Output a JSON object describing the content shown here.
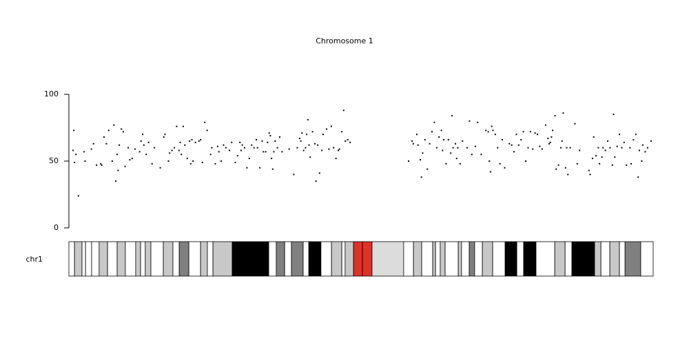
{
  "chart_data": {
    "type": "scatter",
    "title": "Chromosome 1",
    "xlim": [
      0,
      249.4
    ],
    "ylim": [
      0,
      100
    ],
    "yticks": [
      0,
      50,
      100
    ],
    "color": "#000000",
    "x": [
      1.8,
      2.1,
      2.4,
      3,
      4.1,
      6.5,
      6.9,
      9.6,
      10.5,
      11.8,
      13.6,
      14,
      15,
      16,
      17,
      18.5,
      19.2,
      20,
      20.6,
      21,
      21.5,
      22.4,
      23.2,
      24,
      25.3,
      26,
      27,
      28.2,
      30.2,
      30.8,
      31.5,
      32,
      33,
      34,
      35.5,
      36.5,
      39,
      40.5,
      41,
      42.5,
      43,
      44,
      45,
      46,
      47,
      47.5,
      48,
      48.8,
      49.5,
      50.5,
      51.5,
      52,
      52.5,
      53,
      54,
      55.5,
      56.2,
      57,
      58,
      59,
      60.5,
      61,
      62.5,
      63.5,
      64,
      65,
      66,
      67,
      68.5,
      69.5,
      71,
      72,
      73,
      73.5,
      74,
      75,
      76,
      77,
      78,
      79,
      80,
      80.5,
      81.5,
      82.5,
      83,
      84,
      84.8,
      85.5,
      86,
      86.5,
      87,
      87.5,
      88,
      89,
      90,
      91,
      94,
      96,
      97.5,
      98.5,
      99,
      99.5,
      100.2,
      101,
      101.5,
      102,
      102.5,
      103,
      104,
      105,
      105.5,
      106.2,
      107,
      108,
      108.5,
      110,
      111,
      112,
      113,
      114,
      115,
      115.5,
      116.5,
      117.3,
      118,
      119,
      120,
      145,
      146.5,
      147,
      148.5,
      149,
      150,
      150.5,
      151,
      152,
      153,
      154,
      155,
      156,
      157,
      158,
      159,
      159.5,
      160,
      161,
      162,
      163,
      163.5,
      164,
      165,
      165.5,
      166,
      167,
      168,
      170,
      171,
      172,
      173.5,
      174.5,
      176,
      178,
      179,
      179.5,
      180,
      180.5,
      181,
      182,
      183,
      184,
      185,
      186,
      188,
      189,
      190,
      191,
      192,
      193,
      194,
      195,
      196,
      197,
      198,
      199,
      200,
      201,
      202,
      203.5,
      204.5,
      205,
      205.5,
      206,
      206.5,
      207.5,
      208,
      209,
      210,
      210.5,
      211,
      212,
      212.5,
      213,
      214,
      216,
      217,
      218,
      222,
      222.5,
      223.5,
      224,
      225,
      226,
      226.5,
      227.5,
      228,
      229,
      230,
      231,
      232,
      232.5,
      233,
      234,
      235,
      236,
      237,
      238,
      239.5,
      240,
      241,
      242,
      243,
      243.5,
      244.5,
      245,
      246,
      247,
      248.5
    ],
    "values": [
      58,
      73,
      49,
      55,
      24,
      57,
      50,
      59,
      63,
      47,
      48,
      47,
      68,
      63,
      73,
      50,
      77,
      35,
      55,
      43,
      62,
      74,
      72,
      46,
      60,
      51,
      52,
      59,
      57,
      65,
      70,
      62,
      55,
      64,
      48,
      60,
      45,
      68,
      70,
      50,
      56,
      58,
      60,
      76,
      58,
      64,
      55,
      76,
      62,
      52,
      65,
      48,
      66,
      50,
      64,
      65,
      66,
      49,
      79,
      73,
      55,
      60,
      48,
      61,
      57,
      50,
      62,
      60,
      58,
      64,
      49,
      54,
      64,
      58,
      62,
      60,
      45,
      52,
      62,
      60,
      66,
      60,
      45,
      65,
      57,
      57,
      64,
      71,
      69,
      52,
      44,
      57,
      65,
      60,
      68,
      57,
      59,
      40,
      60,
      67,
      65,
      71,
      58,
      60,
      70,
      81,
      62,
      53,
      72,
      63,
      35,
      62,
      41,
      58,
      70,
      74,
      59,
      76,
      60,
      52,
      58,
      59,
      72,
      88,
      65,
      66,
      64,
      50,
      65,
      63,
      70,
      62,
      51,
      38,
      56,
      66,
      44,
      63,
      72,
      79,
      60,
      68,
      73,
      58,
      66,
      48,
      66,
      56,
      84,
      60,
      63,
      52,
      60,
      48,
      65,
      60,
      80,
      55,
      61,
      79,
      55,
      73,
      72,
      50,
      42,
      76,
      73,
      70,
      60,
      48,
      66,
      45,
      63,
      62,
      57,
      70,
      62,
      66,
      72,
      50,
      60,
      72,
      59,
      71,
      70,
      61,
      59,
      77,
      67,
      63,
      64,
      68,
      73,
      84,
      44,
      47,
      60,
      65,
      86,
      45,
      60,
      40,
      60,
      78,
      48,
      58,
      43,
      40,
      52,
      68,
      54,
      60,
      48,
      53,
      60,
      58,
      65,
      60,
      47,
      85,
      53,
      61,
      70,
      60,
      64,
      47,
      60,
      48,
      66,
      70,
      38,
      58,
      50,
      62,
      57,
      60,
      65
    ],
    "ideogram": {
      "label": "chr1",
      "bands": [
        {
          "start": 0,
          "end": 2.4,
          "color": "#ffffff"
        },
        {
          "start": 2.4,
          "end": 5.6,
          "color": "#c8c8c8"
        },
        {
          "start": 5.6,
          "end": 7.1,
          "color": "#ffffff"
        },
        {
          "start": 7.1,
          "end": 9.7,
          "color": "#ffffff"
        },
        {
          "start": 9.7,
          "end": 12.9,
          "color": "#ffffff"
        },
        {
          "start": 12.9,
          "end": 16.5,
          "color": "#c8c8c8"
        },
        {
          "start": 16.5,
          "end": 20.6,
          "color": "#ffffff"
        },
        {
          "start": 20.6,
          "end": 24.1,
          "color": "#c8c8c8"
        },
        {
          "start": 24.1,
          "end": 28.5,
          "color": "#ffffff"
        },
        {
          "start": 28.5,
          "end": 30.6,
          "color": "#c8c8c8"
        },
        {
          "start": 30.6,
          "end": 32.6,
          "color": "#ffffff"
        },
        {
          "start": 32.6,
          "end": 35.0,
          "color": "#c8c8c8"
        },
        {
          "start": 35.0,
          "end": 40.3,
          "color": "#ffffff"
        },
        {
          "start": 40.3,
          "end": 44.4,
          "color": "#c8c8c8"
        },
        {
          "start": 44.4,
          "end": 47.1,
          "color": "#ffffff"
        },
        {
          "start": 47.1,
          "end": 51.2,
          "color": "#808080"
        },
        {
          "start": 51.2,
          "end": 56.2,
          "color": "#ffffff"
        },
        {
          "start": 56.2,
          "end": 59.1,
          "color": "#c8c8c8"
        },
        {
          "start": 59.1,
          "end": 61.5,
          "color": "#ffffff"
        },
        {
          "start": 61.5,
          "end": 69.7,
          "color": "#c8c8c8"
        },
        {
          "start": 69.7,
          "end": 85.3,
          "color": "#000000"
        },
        {
          "start": 85.3,
          "end": 88.5,
          "color": "#ffffff"
        },
        {
          "start": 88.5,
          "end": 92.1,
          "color": "#808080"
        },
        {
          "start": 92.1,
          "end": 95.0,
          "color": "#ffffff"
        },
        {
          "start": 95.0,
          "end": 100.0,
          "color": "#808080"
        },
        {
          "start": 100.0,
          "end": 102.4,
          "color": "#ffffff"
        },
        {
          "start": 102.4,
          "end": 107.6,
          "color": "#000000"
        },
        {
          "start": 107.6,
          "end": 112.1,
          "color": "#ffffff"
        },
        {
          "start": 112.1,
          "end": 116.5,
          "color": "#c8c8c8"
        },
        {
          "start": 116.5,
          "end": 117.9,
          "color": "#ffffff"
        },
        {
          "start": 117.9,
          "end": 121.5,
          "color": "#c8c8c8"
        },
        {
          "start": 121.5,
          "end": 125.3,
          "color": "#e0302a"
        },
        {
          "start": 125.3,
          "end": 129.4,
          "color": "#e0302a"
        },
        {
          "start": 129.4,
          "end": 142.9,
          "color": "#dcdcdc"
        },
        {
          "start": 142.9,
          "end": 147.1,
          "color": "#ffffff"
        },
        {
          "start": 147.1,
          "end": 150.6,
          "color": "#c8c8c8"
        },
        {
          "start": 150.6,
          "end": 155.3,
          "color": "#ffffff"
        },
        {
          "start": 155.3,
          "end": 156.5,
          "color": "#c8c8c8"
        },
        {
          "start": 156.5,
          "end": 158.5,
          "color": "#ffffff"
        },
        {
          "start": 158.5,
          "end": 160.6,
          "color": "#c8c8c8"
        },
        {
          "start": 160.6,
          "end": 166.2,
          "color": "#ffffff"
        },
        {
          "start": 166.2,
          "end": 167.6,
          "color": "#c8c8c8"
        },
        {
          "start": 167.6,
          "end": 170.9,
          "color": "#ffffff"
        },
        {
          "start": 170.9,
          "end": 173.2,
          "color": "#808080"
        },
        {
          "start": 173.2,
          "end": 176.5,
          "color": "#ffffff"
        },
        {
          "start": 176.5,
          "end": 180.9,
          "color": "#c8c8c8"
        },
        {
          "start": 180.9,
          "end": 186.2,
          "color": "#ffffff"
        },
        {
          "start": 186.2,
          "end": 191.2,
          "color": "#000000"
        },
        {
          "start": 191.2,
          "end": 194.1,
          "color": "#ffffff"
        },
        {
          "start": 194.1,
          "end": 199.4,
          "color": "#000000"
        },
        {
          "start": 199.4,
          "end": 207.4,
          "color": "#ffffff"
        },
        {
          "start": 207.4,
          "end": 211.8,
          "color": "#c8c8c8"
        },
        {
          "start": 211.8,
          "end": 214.7,
          "color": "#ffffff"
        },
        {
          "start": 214.7,
          "end": 224.4,
          "color": "#000000"
        },
        {
          "start": 224.4,
          "end": 227.1,
          "color": "#c8c8c8"
        },
        {
          "start": 227.1,
          "end": 230.9,
          "color": "#ffffff"
        },
        {
          "start": 230.9,
          "end": 235.0,
          "color": "#c8c8c8"
        },
        {
          "start": 235.0,
          "end": 237.4,
          "color": "#ffffff"
        },
        {
          "start": 237.4,
          "end": 244.1,
          "color": "#808080"
        },
        {
          "start": 244.1,
          "end": 249.4,
          "color": "#ffffff"
        }
      ]
    }
  }
}
